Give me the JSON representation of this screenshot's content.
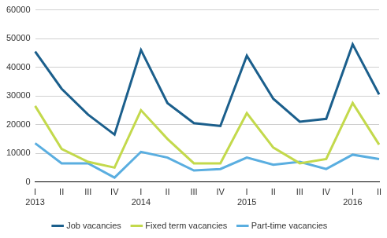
{
  "chart_data": {
    "type": "line",
    "categories": [
      [
        "I",
        "2013"
      ],
      "II",
      "III",
      "IV",
      [
        "I",
        "2014"
      ],
      "II",
      "III",
      "IV",
      [
        "I",
        "2015"
      ],
      "II",
      "III",
      "IV",
      [
        "I",
        "2016"
      ],
      "II"
    ],
    "series": [
      {
        "name": "Job vacancies",
        "color": "#1b5f8c",
        "values": [
          45500,
          32500,
          23500,
          16500,
          46000,
          27500,
          20500,
          19500,
          44000,
          29000,
          21000,
          22000,
          48000,
          30500
        ]
      },
      {
        "name": "Fixed term vacancies",
        "color": "#c3d94c",
        "values": [
          26500,
          11500,
          7000,
          5000,
          25000,
          15000,
          6500,
          6500,
          24000,
          12000,
          6500,
          8000,
          27500,
          13000
        ]
      },
      {
        "name": "Part-time vacancies",
        "color": "#5aaee0",
        "values": [
          13500,
          6500,
          6500,
          1500,
          10500,
          8500,
          4000,
          4500,
          8500,
          6000,
          7000,
          4500,
          9500,
          8000
        ]
      }
    ],
    "ylim": [
      0,
      60000
    ],
    "yticks": [
      0,
      10000,
      20000,
      30000,
      40000,
      50000,
      60000
    ],
    "grid": true,
    "legend": "bottom"
  }
}
